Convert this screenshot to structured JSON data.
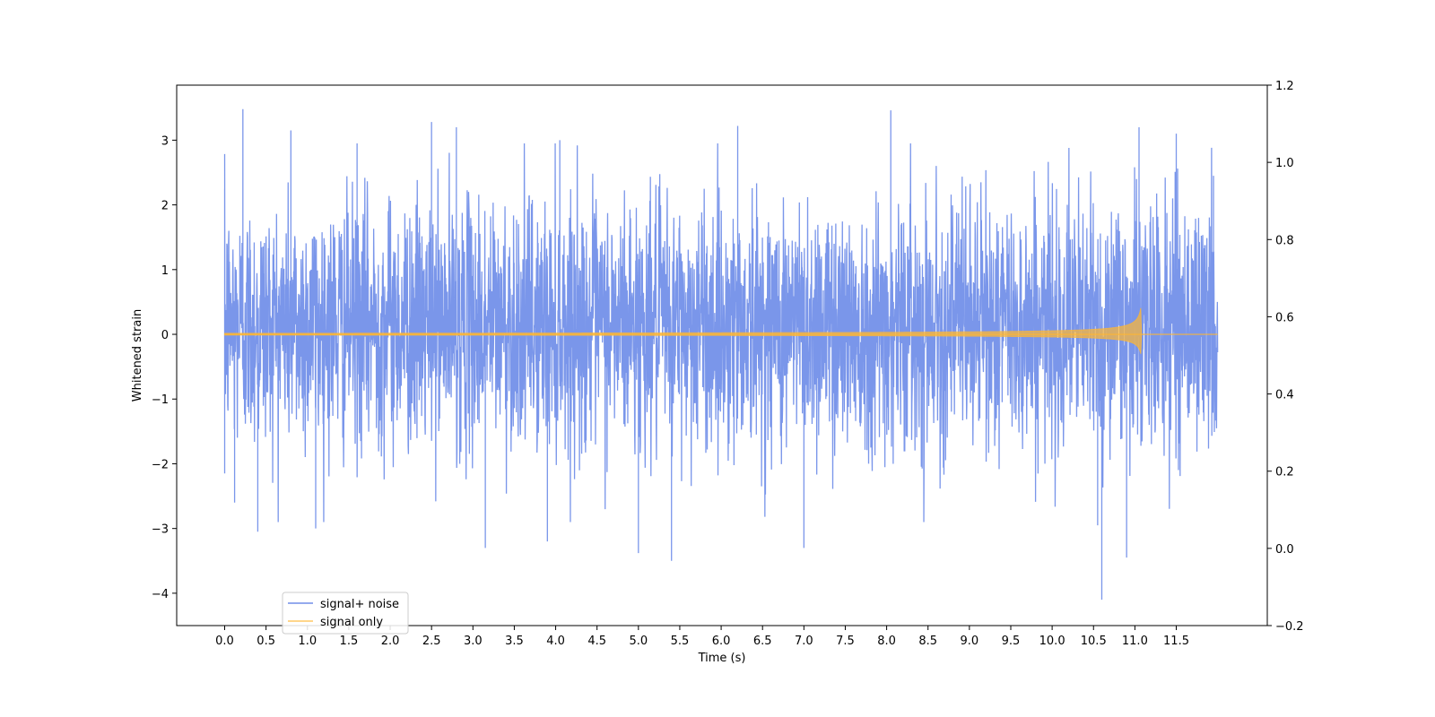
{
  "chart_data": {
    "type": "line",
    "title": "",
    "xlabel": "Time (s)",
    "ylabel": "Whitened strain",
    "x_range": [
      -0.58,
      12.6
    ],
    "y_range": [
      -4.5,
      3.85
    ],
    "y2_range": [
      -0.2,
      1.2
    ],
    "x_ticks": [
      "0.0",
      "0.5",
      "1.0",
      "1.5",
      "2.0",
      "2.5",
      "3.0",
      "3.5",
      "4.0",
      "4.5",
      "5.0",
      "5.5",
      "6.0",
      "6.5",
      "7.0",
      "7.5",
      "8.0",
      "8.5",
      "9.0",
      "9.5",
      "10.0",
      "10.5",
      "11.0",
      "11.5"
    ],
    "y_ticks": [
      "3",
      "2",
      "1",
      "0",
      "−1",
      "−2",
      "−3",
      "−4"
    ],
    "y2_ticks": [
      "1.2",
      "1.0",
      "0.8",
      "0.6",
      "0.4",
      "0.2",
      "0.0",
      "−0.2"
    ],
    "grid": false,
    "legend_position": "lower-left",
    "series": [
      {
        "name": "signal+ noise",
        "color": "#4169e1",
        "duration": 12.0,
        "peaks": [
          [
            0.0,
            2.25
          ],
          [
            0.0,
            -2.15
          ],
          [
            0.12,
            -2.6
          ],
          [
            0.22,
            3.48
          ],
          [
            0.4,
            -3.05
          ],
          [
            0.8,
            3.15
          ],
          [
            1.1,
            -3.0
          ],
          [
            1.6,
            2.95
          ],
          [
            2.5,
            3.28
          ],
          [
            2.8,
            3.2
          ],
          [
            3.15,
            -3.3
          ],
          [
            3.9,
            -3.2
          ],
          [
            4.05,
            3.0
          ],
          [
            5.0,
            -3.38
          ],
          [
            5.4,
            -3.5
          ],
          [
            6.2,
            3.22
          ],
          [
            7.0,
            -3.3
          ],
          [
            8.05,
            3.46
          ],
          [
            10.55,
            -2.95
          ],
          [
            10.6,
            -4.1
          ],
          [
            10.9,
            -3.45
          ],
          [
            11.05,
            3.2
          ],
          [
            11.5,
            3.1
          ],
          [
            11.95,
            2.45
          ]
        ]
      },
      {
        "name": "signal only",
        "color": "#ffb732",
        "merger_time": 11.08,
        "peak_amplitude": [
          0.5,
          -0.37
        ]
      }
    ]
  }
}
